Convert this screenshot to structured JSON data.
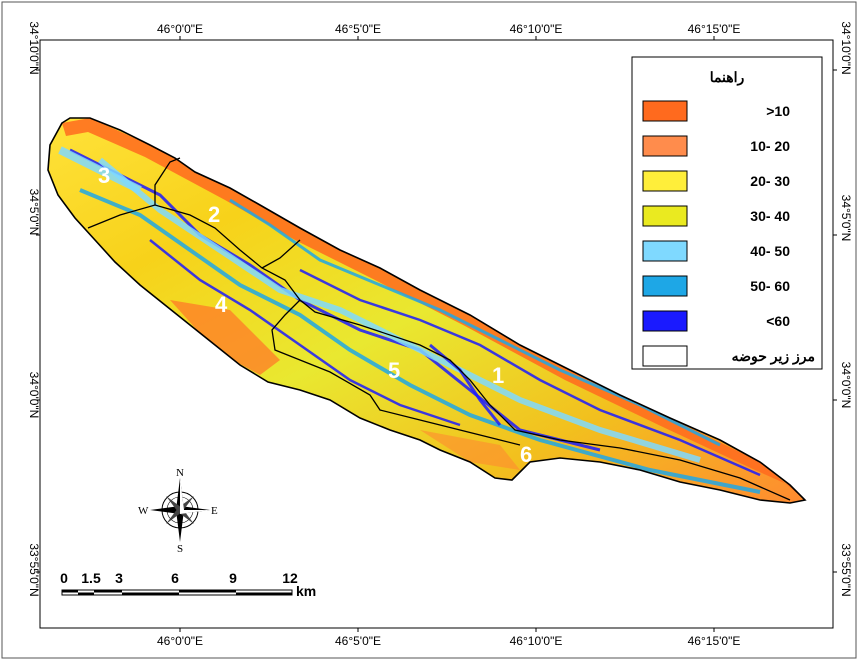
{
  "map": {
    "top_ticks": [
      "46°0'0\"E",
      "46°5'0\"E",
      "46°10'0\"E",
      "46°15'0\"E"
    ],
    "bottom_ticks": [
      "46°0'0\"E",
      "46°5'0\"E",
      "46°10'0\"E",
      "46°15'0\"E"
    ],
    "left_ticks": [
      "34°10'0\"N",
      "34°5'0\"N",
      "34°0'0\"N",
      "33°55'0\"N"
    ],
    "right_ticks": [
      "34°10'0\"N",
      "34°5'0\"N",
      "34°0'0\"N",
      "33°55'0\"N"
    ]
  },
  "legend": {
    "title": "راهنما",
    "items": [
      {
        "label": ">10",
        "color": "#ff6a1e"
      },
      {
        "label": "10- 20",
        "color": "#ff8c4c"
      },
      {
        "label": "20- 30",
        "color": "#ffee3a"
      },
      {
        "label": "30- 40",
        "color": "#eaea20"
      },
      {
        "label": "40- 50",
        "color": "#7fd9ff"
      },
      {
        "label": "50- 60",
        "color": "#1ea7e6"
      },
      {
        "label": "<60",
        "color": "#1a1aff"
      },
      {
        "label": "مرز زیر حوضه",
        "color": "#ffffff"
      }
    ]
  },
  "subbasins": [
    "1",
    "2",
    "3",
    "4",
    "5",
    "6"
  ],
  "north_arrow": {
    "n": "N",
    "s": "S",
    "e": "E",
    "w": "W"
  },
  "scale_bar": {
    "ticks": [
      "0",
      "1.5",
      "3",
      "6",
      "9",
      "12"
    ],
    "unit": "km"
  }
}
